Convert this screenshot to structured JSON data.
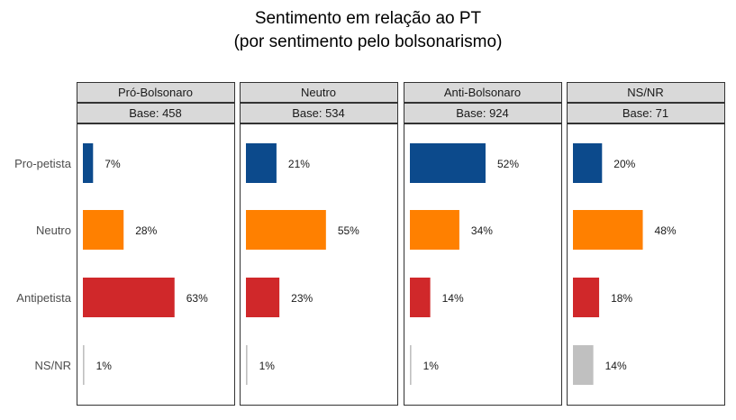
{
  "chart_data": {
    "type": "bar",
    "title": "Sentimento em relação ao PT",
    "subtitle": "(por sentimento pelo bolsonarismo)",
    "categories": [
      "Pro-petista",
      "Neutro",
      "Antipetista",
      "NS/NR"
    ],
    "category_colors": [
      "#0c4a8c",
      "#ff8000",
      "#d0282a",
      "#c0c0c0"
    ],
    "xlim": [
      0,
      100
    ],
    "grid": false,
    "panels": [
      {
        "name": "Pró-Bolsonaro",
        "base": "Base: 458",
        "values": [
          7,
          28,
          63,
          1
        ],
        "labels": [
          "7%",
          "28%",
          "63%",
          "1%"
        ]
      },
      {
        "name": "Neutro",
        "base": "Base: 534",
        "values": [
          21,
          55,
          23,
          1
        ],
        "labels": [
          "21%",
          "55%",
          "23%",
          "1%"
        ]
      },
      {
        "name": "Anti-Bolsonaro",
        "base": "Base: 924",
        "values": [
          52,
          34,
          14,
          1
        ],
        "labels": [
          "52%",
          "34%",
          "14%",
          "1%"
        ]
      },
      {
        "name": "NS/NR",
        "base": "Base: 71",
        "values": [
          20,
          48,
          18,
          14
        ],
        "labels": [
          "20%",
          "48%",
          "18%",
          "14%"
        ]
      }
    ]
  }
}
